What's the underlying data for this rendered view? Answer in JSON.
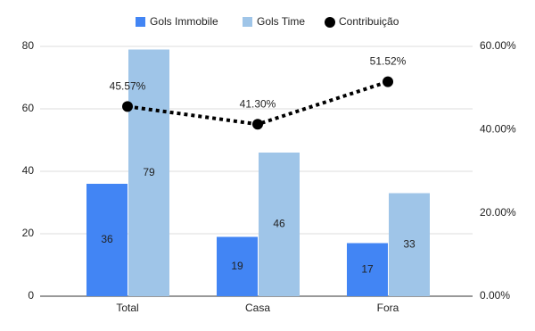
{
  "chart_data": {
    "type": "combo",
    "categories": [
      "Total",
      "Casa",
      "Fora"
    ],
    "series": [
      {
        "name": "Gols Immobile",
        "type": "bar",
        "color": "#4285f4",
        "values": [
          36,
          19,
          17
        ]
      },
      {
        "name": "Gols Time",
        "type": "bar",
        "color": "#9fc5e8",
        "values": [
          79,
          46,
          33
        ]
      },
      {
        "name": "Contribuição",
        "type": "line",
        "axis": "y2",
        "color": "#000000",
        "values": [
          45.57,
          41.3,
          51.52
        ],
        "value_labels": [
          "45.57%",
          "41.30%",
          "51.52%"
        ]
      }
    ],
    "ylim": [
      0,
      80
    ],
    "yticks": [
      0,
      20,
      40,
      60,
      80
    ],
    "y2lim": [
      0,
      60
    ],
    "y2ticks": [
      {
        "value": 0,
        "label": "0.00%"
      },
      {
        "value": 20,
        "label": "20.00%"
      },
      {
        "value": 40,
        "label": "40.00%"
      },
      {
        "value": 60,
        "label": "60.00%"
      }
    ],
    "grid": true,
    "legend": "top"
  }
}
